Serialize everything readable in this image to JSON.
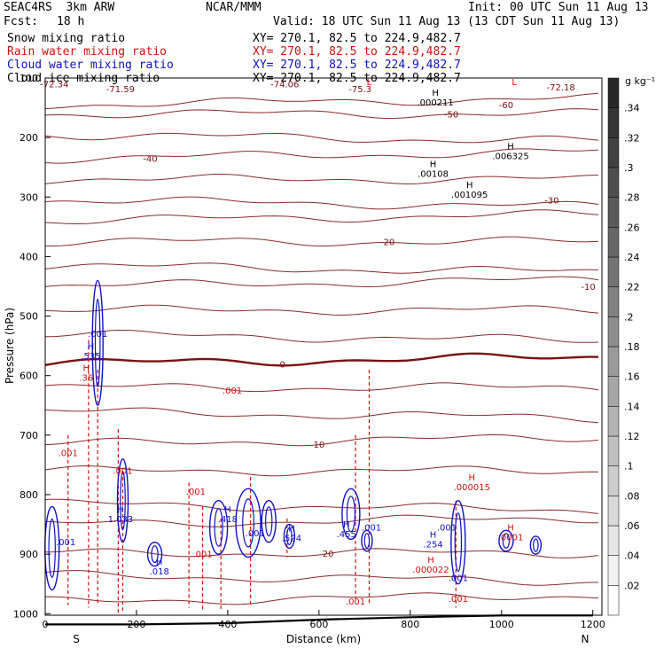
{
  "header": {
    "model": "SEAC4RS  3km ARW",
    "org": "NCAR/MMM",
    "init": "Init: 00 UTC Sun 11 Aug 13",
    "fcst_label": "Fcst:",
    "fcst_value": "18 h",
    "valid": "Valid: 18 UTC Sun 11 Aug 13 (13 CDT Sun 11 Aug 13)"
  },
  "fields": [
    {
      "name": "Snow mixing ratio",
      "xy": "XY= 270.1, 82.5 to 224.9,482.7",
      "color": "#000000"
    },
    {
      "name": "Rain water mixing ratio",
      "xy": "XY= 270.1, 82.5 to 224.9,482.7",
      "color": "#d01010"
    },
    {
      "name": "Cloud water mixing ratio",
      "xy": "XY= 270.1, 82.5 to 224.9,482.7",
      "color": "#1010c8"
    },
    {
      "name": "Cloud ice mixing ratio",
      "xy": "XY= 270.1, 82.5 to 224.9,482.7",
      "color": "#000000"
    }
  ],
  "colorbar": {
    "unit": "g kg⁻¹",
    "levels": [
      ".02",
      ".04",
      ".06",
      ".08",
      ".1",
      ".12",
      ".14",
      ".16",
      ".18",
      ".2",
      ".22",
      ".24",
      ".26",
      ".28",
      ".3",
      ".32",
      ".34"
    ]
  },
  "chart_data": {
    "type": "cross-section contour",
    "xlabel": "Distance (km)",
    "ylabel": "Pressure (hPa)",
    "x_ticks": [
      "0",
      "200",
      "400",
      "600",
      "800",
      "1000",
      "1200"
    ],
    "y_ticks": [
      "100",
      "200",
      "300",
      "400",
      "500",
      "600",
      "700",
      "800",
      "900",
      "1000"
    ],
    "xlim": [
      0,
      1220
    ],
    "ylim_hPa": [
      100,
      1040
    ],
    "end_labels": {
      "left": "S",
      "right": "N"
    },
    "temperature_contours": [
      {
        "label": "-72.34",
        "p": 110
      },
      {
        "label": "-71.59",
        "p": 118
      },
      {
        "label": "-74.06",
        "p": 110
      },
      {
        "label": "-75.3",
        "p": 118
      },
      {
        "label": "-72.18",
        "p": 115
      },
      {
        "label": "-60",
        "p": 145
      },
      {
        "label": "-50",
        "p": 160
      },
      {
        "label": "-40",
        "p": 235
      },
      {
        "label": "-30",
        "p": 305
      },
      {
        "label": "-20",
        "p": 375
      },
      {
        "label": "-10",
        "p": 450
      },
      {
        "label": "0",
        "p": 580
      },
      {
        "label": "10",
        "p": 715
      },
      {
        "label": "20",
        "p": 898
      }
    ],
    "contour_interval": 10,
    "max_min_labels": [
      {
        "mark": "L",
        "value": "",
        "x": 1028,
        "p": 112
      },
      {
        "mark": "L",
        "value": "",
        "x": 710,
        "p": 112
      },
      {
        "mark": "H",
        "value": ".000211",
        "x": 855,
        "p": 130
      },
      {
        "mark": "H",
        "value": ".006325",
        "x": 1020,
        "p": 220
      },
      {
        "mark": "H",
        "value": ".00108",
        "x": 850,
        "p": 250
      },
      {
        "mark": "H",
        "value": ".001095",
        "x": 930,
        "p": 285
      },
      {
        "mark": "H",
        "value": ".36",
        "x": 90,
        "p": 592
      },
      {
        "mark": "H",
        "value": ".000015",
        "x": 935,
        "p": 776
      },
      {
        "mark": "H",
        "value": ".000022",
        "x": 845,
        "p": 915
      },
      {
        "mark": "H",
        "value": ".0001",
        "x": 1020,
        "p": 860
      },
      {
        "mark": "H",
        "value": ".535",
        "x": 100,
        "p": 556
      },
      {
        "mark": "H",
        "value": "1.033",
        "x": 165,
        "p": 830
      },
      {
        "mark": "H",
        "value": ".418",
        "x": 400,
        "p": 830
      },
      {
        "mark": "H",
        "value": ".524",
        "x": 540,
        "p": 862
      },
      {
        "mark": "H",
        "value": ".455",
        "x": 660,
        "p": 855
      },
      {
        "mark": "H",
        "value": ".254",
        "x": 850,
        "p": 872
      },
      {
        "mark": "H",
        "value": ".018",
        "x": 250,
        "p": 918
      }
    ],
    "rain_labels": [
      ".001",
      ".001",
      ".001",
      ".001",
      ".001",
      ".001",
      ".001"
    ],
    "cloud_labels": [
      ".001",
      ".001",
      ".001",
      ".001",
      ".001",
      ".001"
    ],
    "terrain_surface_p": [
      1018,
      1018,
      1016,
      1013,
      1010,
      1006,
      1003,
      1003
    ],
    "terrain_x": [
      0,
      200,
      400,
      500,
      600,
      800,
      1000,
      1200
    ]
  }
}
